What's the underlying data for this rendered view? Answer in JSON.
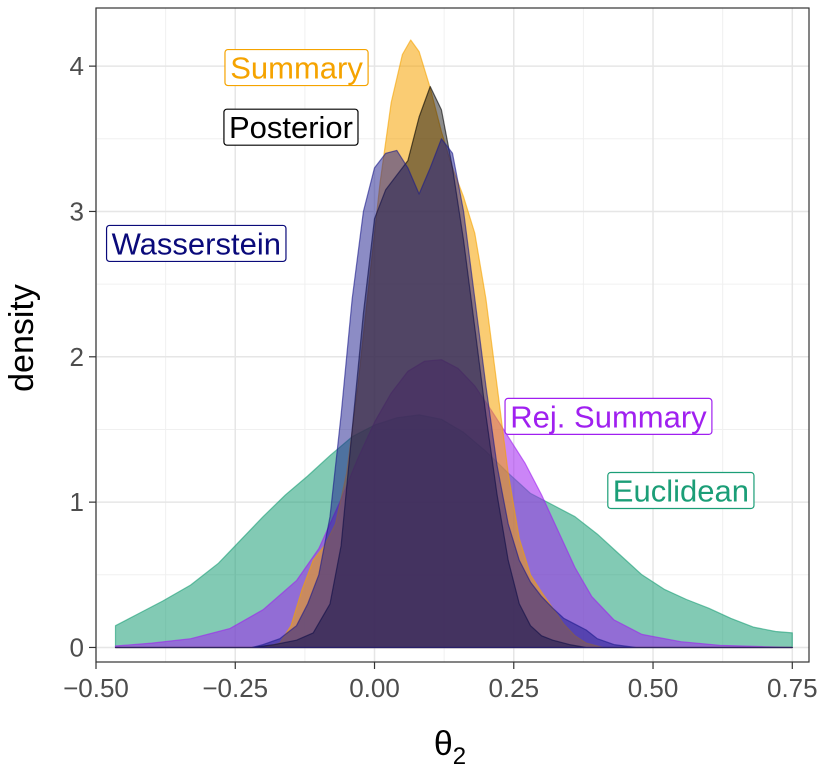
{
  "chart_data": {
    "type": "area",
    "title": "",
    "xlabel": "θ",
    "xlabel_subscript": "2",
    "ylabel": "density",
    "xlim": [
      -0.5,
      0.78
    ],
    "ylim": [
      -0.1,
      4.4
    ],
    "x_ticks": [
      -0.5,
      -0.25,
      0,
      0.25,
      0.5,
      0.75
    ],
    "x_tick_labels": [
      "−0.50",
      "−0.25",
      "0.00",
      "0.25",
      "0.50",
      "0.75"
    ],
    "y_ticks": [
      0,
      1,
      2,
      3,
      4
    ],
    "y_tick_labels": [
      "0",
      "1",
      "2",
      "3",
      "4"
    ],
    "grid": true,
    "legend": "direct labels",
    "series": [
      {
        "name": "Euclidean",
        "color": "#1b9e77",
        "fill_opacity": 0.55,
        "points": [
          [
            -0.465,
            0.15
          ],
          [
            -0.43,
            0.22
          ],
          [
            -0.38,
            0.32
          ],
          [
            -0.33,
            0.43
          ],
          [
            -0.28,
            0.58
          ],
          [
            -0.24,
            0.74
          ],
          [
            -0.2,
            0.9
          ],
          [
            -0.16,
            1.05
          ],
          [
            -0.12,
            1.18
          ],
          [
            -0.08,
            1.32
          ],
          [
            -0.04,
            1.45
          ],
          [
            0.0,
            1.53
          ],
          [
            0.04,
            1.58
          ],
          [
            0.08,
            1.6
          ],
          [
            0.12,
            1.57
          ],
          [
            0.16,
            1.48
          ],
          [
            0.2,
            1.35
          ],
          [
            0.24,
            1.2
          ],
          [
            0.28,
            1.06
          ],
          [
            0.32,
            0.98
          ],
          [
            0.36,
            0.9
          ],
          [
            0.4,
            0.78
          ],
          [
            0.44,
            0.64
          ],
          [
            0.48,
            0.5
          ],
          [
            0.52,
            0.4
          ],
          [
            0.56,
            0.33
          ],
          [
            0.6,
            0.27
          ],
          [
            0.64,
            0.2
          ],
          [
            0.68,
            0.14
          ],
          [
            0.72,
            0.11
          ],
          [
            0.75,
            0.1
          ]
        ]
      },
      {
        "name": "Rej. Summary",
        "color": "#a020f0",
        "fill_opacity": 0.55,
        "points": [
          [
            -0.465,
            0.01
          ],
          [
            -0.4,
            0.03
          ],
          [
            -0.33,
            0.06
          ],
          [
            -0.26,
            0.13
          ],
          [
            -0.2,
            0.26
          ],
          [
            -0.14,
            0.46
          ],
          [
            -0.1,
            0.68
          ],
          [
            -0.06,
            1.02
          ],
          [
            -0.03,
            1.3
          ],
          [
            0.0,
            1.55
          ],
          [
            0.03,
            1.75
          ],
          [
            0.06,
            1.9
          ],
          [
            0.09,
            1.97
          ],
          [
            0.12,
            1.98
          ],
          [
            0.15,
            1.92
          ],
          [
            0.18,
            1.8
          ],
          [
            0.21,
            1.63
          ],
          [
            0.24,
            1.45
          ],
          [
            0.27,
            1.27
          ],
          [
            0.3,
            1.05
          ],
          [
            0.33,
            0.8
          ],
          [
            0.36,
            0.55
          ],
          [
            0.39,
            0.35
          ],
          [
            0.43,
            0.19
          ],
          [
            0.48,
            0.09
          ],
          [
            0.55,
            0.04
          ],
          [
            0.62,
            0.015
          ],
          [
            0.7,
            0.005
          ],
          [
            0.75,
            0.0
          ]
        ]
      },
      {
        "name": "Summary",
        "color": "#f5a300",
        "fill_opacity": 0.55,
        "points": [
          [
            -0.465,
            0.0
          ],
          [
            -0.2,
            0.0
          ],
          [
            -0.17,
            0.03
          ],
          [
            -0.15,
            0.15
          ],
          [
            -0.13,
            0.4
          ],
          [
            -0.11,
            0.6
          ],
          [
            -0.09,
            0.7
          ],
          [
            -0.07,
            0.85
          ],
          [
            -0.05,
            1.2
          ],
          [
            -0.03,
            1.8
          ],
          [
            -0.01,
            2.5
          ],
          [
            0.01,
            3.2
          ],
          [
            0.03,
            3.75
          ],
          [
            0.05,
            4.08
          ],
          [
            0.065,
            4.18
          ],
          [
            0.08,
            4.1
          ],
          [
            0.1,
            3.85
          ],
          [
            0.12,
            3.55
          ],
          [
            0.14,
            3.3
          ],
          [
            0.16,
            3.1
          ],
          [
            0.18,
            2.85
          ],
          [
            0.2,
            2.4
          ],
          [
            0.22,
            1.8
          ],
          [
            0.24,
            1.2
          ],
          [
            0.26,
            0.75
          ],
          [
            0.28,
            0.5
          ],
          [
            0.3,
            0.38
          ],
          [
            0.32,
            0.27
          ],
          [
            0.34,
            0.16
          ],
          [
            0.36,
            0.08
          ],
          [
            0.38,
            0.03
          ],
          [
            0.41,
            0.0
          ],
          [
            0.75,
            0.0
          ]
        ]
      },
      {
        "name": "Posterior",
        "color": "#000000",
        "fill_opacity": 0.45,
        "points": [
          [
            -0.465,
            0.0
          ],
          [
            -0.22,
            0.0
          ],
          [
            -0.18,
            0.02
          ],
          [
            -0.14,
            0.05
          ],
          [
            -0.11,
            0.1
          ],
          [
            -0.08,
            0.3
          ],
          [
            -0.06,
            0.7
          ],
          [
            -0.04,
            1.5
          ],
          [
            -0.02,
            2.3
          ],
          [
            0.0,
            2.95
          ],
          [
            0.02,
            3.15
          ],
          [
            0.04,
            3.25
          ],
          [
            0.06,
            3.35
          ],
          [
            0.08,
            3.65
          ],
          [
            0.1,
            3.86
          ],
          [
            0.12,
            3.7
          ],
          [
            0.14,
            3.3
          ],
          [
            0.16,
            2.8
          ],
          [
            0.18,
            2.2
          ],
          [
            0.2,
            1.6
          ],
          [
            0.22,
            1.05
          ],
          [
            0.24,
            0.6
          ],
          [
            0.26,
            0.3
          ],
          [
            0.28,
            0.15
          ],
          [
            0.3,
            0.08
          ],
          [
            0.32,
            0.05
          ],
          [
            0.35,
            0.02
          ],
          [
            0.38,
            0.0
          ],
          [
            0.75,
            0.0
          ]
        ]
      },
      {
        "name": "Wasserstein",
        "color": "#1a1a8c",
        "fill_opacity": 0.5,
        "points": [
          [
            -0.465,
            0.0
          ],
          [
            -0.22,
            0.0
          ],
          [
            -0.2,
            0.02
          ],
          [
            -0.17,
            0.06
          ],
          [
            -0.14,
            0.15
          ],
          [
            -0.12,
            0.3
          ],
          [
            -0.1,
            0.5
          ],
          [
            -0.08,
            0.9
          ],
          [
            -0.06,
            1.6
          ],
          [
            -0.04,
            2.4
          ],
          [
            -0.02,
            3.0
          ],
          [
            0.0,
            3.3
          ],
          [
            0.02,
            3.4
          ],
          [
            0.04,
            3.42
          ],
          [
            0.06,
            3.3
          ],
          [
            0.08,
            3.12
          ],
          [
            0.1,
            3.3
          ],
          [
            0.12,
            3.5
          ],
          [
            0.14,
            3.4
          ],
          [
            0.16,
            3.0
          ],
          [
            0.18,
            2.4
          ],
          [
            0.2,
            1.8
          ],
          [
            0.22,
            1.25
          ],
          [
            0.24,
            0.85
          ],
          [
            0.26,
            0.6
          ],
          [
            0.28,
            0.45
          ],
          [
            0.3,
            0.35
          ],
          [
            0.32,
            0.27
          ],
          [
            0.34,
            0.2
          ],
          [
            0.36,
            0.16
          ],
          [
            0.38,
            0.12
          ],
          [
            0.4,
            0.06
          ],
          [
            0.43,
            0.02
          ],
          [
            0.47,
            0.0
          ],
          [
            0.75,
            0.0
          ]
        ]
      }
    ],
    "labels": [
      {
        "text": "Summary",
        "color": "#f5a300",
        "x": -0.14,
        "y": 3.99
      },
      {
        "text": "Posterior",
        "color": "#000000",
        "x": -0.15,
        "y": 3.58
      },
      {
        "text": "Wasserstein",
        "color": "#0a0a7a",
        "x": -0.32,
        "y": 2.78
      },
      {
        "text": "Rej. Summary",
        "color": "#a020f0",
        "x": 0.42,
        "y": 1.59
      },
      {
        "text": "Euclidean",
        "color": "#1b9e77",
        "x": 0.55,
        "y": 1.08
      }
    ]
  }
}
